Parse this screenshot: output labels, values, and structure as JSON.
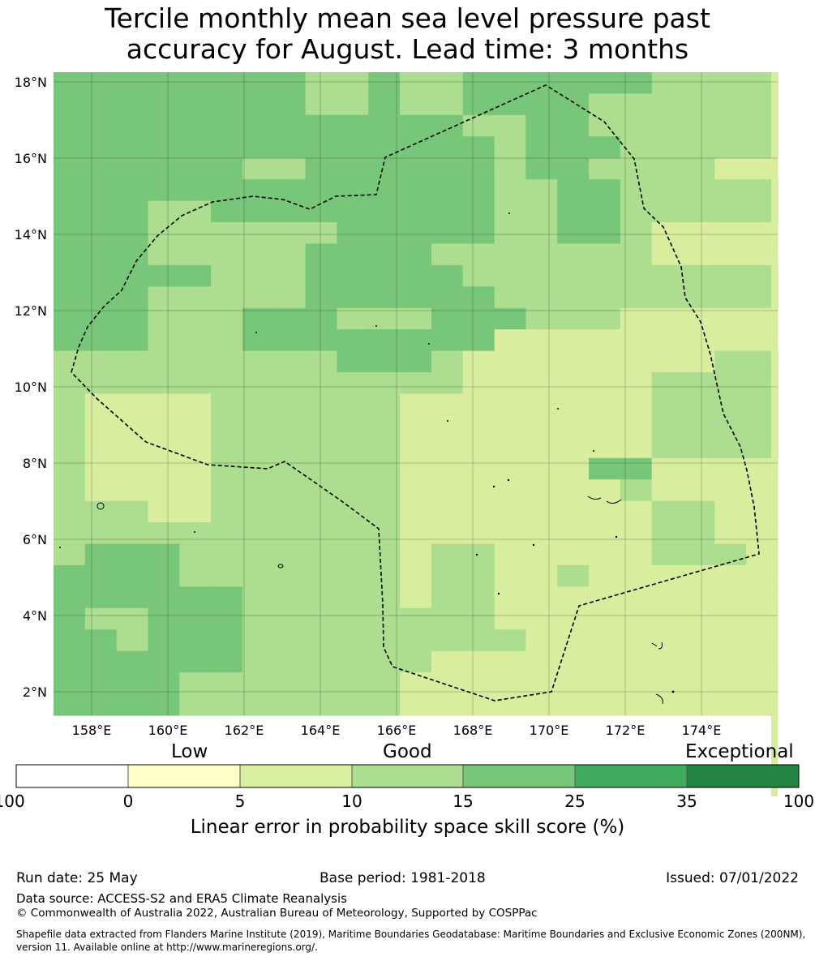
{
  "title": {
    "line1": "Tercile monthly mean sea level pressure past",
    "line2": "accuracy for August. Lead time: 3 months"
  },
  "map": {
    "lat_labels": [
      "18°N",
      "16°N",
      "14°N",
      "12°N",
      "10°N",
      "8°N",
      "6°N",
      "4°N",
      "2°N"
    ],
    "lon_labels": [
      "158°E",
      "160°E",
      "162°E",
      "164°E",
      "166°E",
      "168°E",
      "170°E",
      "172°E",
      "174°E"
    ],
    "class_colors": [
      "#d9ed9f",
      "#addd8e",
      "#78c679"
    ],
    "boundary_style": "dashed black line",
    "gridlines": true
  },
  "colorbar": {
    "categories": [
      "Low",
      "Good",
      "Exceptional"
    ],
    "ticks": [
      "-100",
      "0",
      "5",
      "10",
      "15",
      "25",
      "35",
      "100"
    ],
    "colors": [
      "#ffffff",
      "#ffffcc",
      "#d9f0a3",
      "#addd8e",
      "#78c679",
      "#41ab5d",
      "#238443"
    ],
    "label": "Linear error in probability space skill score (%)"
  },
  "footer": {
    "run_date": "Run date: 25 May",
    "base_period": "Base period: 1981-2018",
    "issued": "Issued: 07/01/2022",
    "data_source": "Data source: ACCESS-S2 and ERA5 Climate Reanalysis",
    "copyright": "© Commonwealth of Australia 2022, Australian Bureau of Meteorology, Supported by COSPPac",
    "shapefile1": "Shapefile data extracted from Flanders Marine Institute (2019), Maritime Boundaries Geodatabase: Maritime Boundaries and Exclusive Economic Zones (200NM),",
    "shapefile2": "version 11. Available online at http://www.marineregions.org/."
  }
}
